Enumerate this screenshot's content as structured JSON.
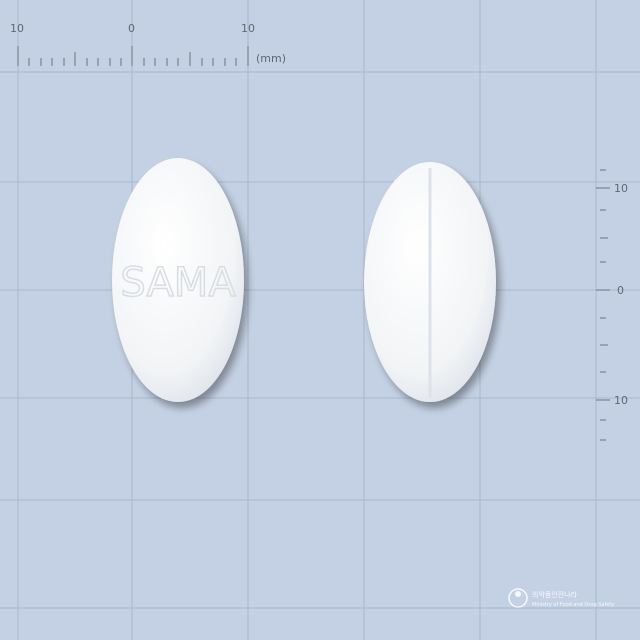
{
  "ruler_top": {
    "labels": [
      "10",
      "0",
      "10"
    ],
    "unit": "(mm)"
  },
  "ruler_right": {
    "labels": [
      "10",
      "0",
      "10"
    ]
  },
  "tablet_front": {
    "imprint": "SAMA"
  },
  "tablet_back": {
    "feature": "score line"
  },
  "watermark": {
    "title": "의약품안전나라",
    "subtitle": "Ministry of Food and Drug Safety"
  },
  "colors": {
    "background": "#c4d1e4",
    "grid": "#a7b6cb",
    "tablet": "#f6f7f8"
  }
}
